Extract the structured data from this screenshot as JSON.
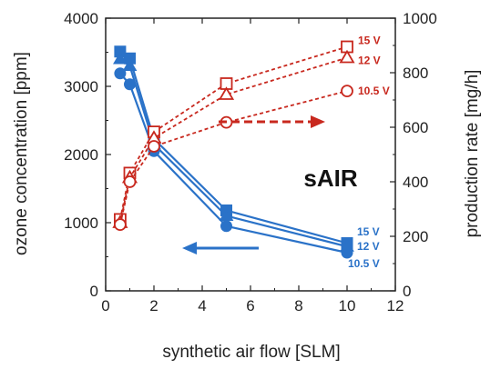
{
  "chart_data": {
    "type": "line",
    "title": "",
    "xlabel": "synthetic air flow [SLM]",
    "ylabel_left": "ozone concentration [ppm]",
    "ylabel_right": "production rate  [mg/h]",
    "xlim": [
      0,
      12
    ],
    "ylim_left": [
      0,
      4000
    ],
    "ylim_right": [
      0,
      1000
    ],
    "x_ticks": [
      "0",
      "2",
      "4",
      "6",
      "8",
      "10",
      "12"
    ],
    "y_left_ticks": [
      "0",
      "1000",
      "2000",
      "3000",
      "4000"
    ],
    "y_right_ticks": [
      "0",
      "200",
      "400",
      "600",
      "800",
      "1000"
    ],
    "grid": false,
    "annotation": "sAIR",
    "colors": {
      "concentration": "#2a72c8",
      "production": "#c8281e"
    },
    "concentration_series": [
      {
        "name": "15 V",
        "marker": "square-filled",
        "x": [
          0.6,
          1,
          2,
          5,
          10
        ],
        "y": [
          3510,
          3410,
          2230,
          1180,
          700
        ]
      },
      {
        "name": "12 V",
        "marker": "triangle-filled",
        "x": [
          0.6,
          1,
          2,
          5,
          10
        ],
        "y": [
          3400,
          3300,
          2150,
          1100,
          650
        ]
      },
      {
        "name": "10.5 V",
        "marker": "circle-filled",
        "x": [
          0.6,
          1,
          2,
          5,
          10
        ],
        "y": [
          3190,
          3030,
          2050,
          950,
          560
        ]
      }
    ],
    "production_series": [
      {
        "name": "15 V",
        "marker": "square-open",
        "x": [
          0.6,
          1,
          2,
          5,
          10
        ],
        "y": [
          262,
          432,
          583,
          760,
          895
        ]
      },
      {
        "name": "12 V",
        "marker": "triangle-open",
        "x": [
          0.6,
          1,
          2,
          5,
          10
        ],
        "y": [
          250,
          415,
          560,
          720,
          855
        ]
      },
      {
        "name": "10.5 V",
        "marker": "circle-open",
        "x": [
          0.6,
          1,
          2,
          5,
          10
        ],
        "y": [
          243,
          400,
          530,
          618,
          733
        ]
      }
    ]
  }
}
